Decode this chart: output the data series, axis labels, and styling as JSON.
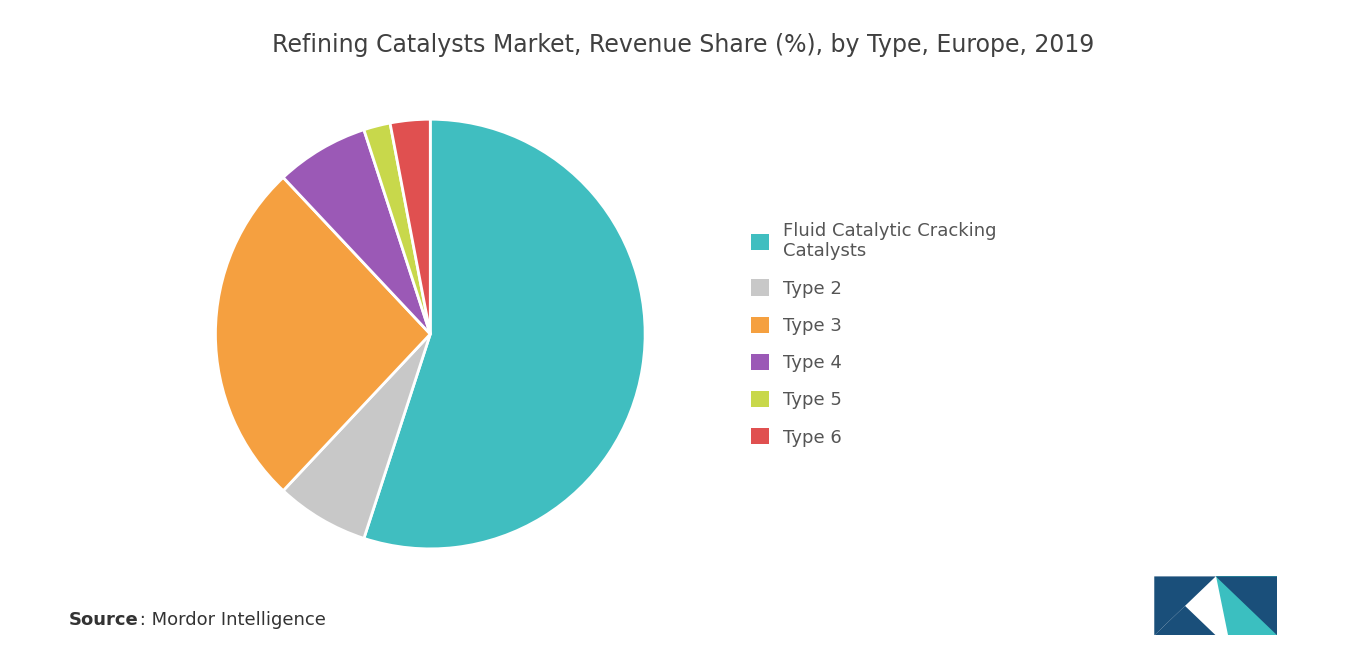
{
  "title": "Refining Catalysts Market, Revenue Share (%), by Type, Europe, 2019",
  "slices": [
    {
      "label": "Fluid Catalytic Cracking\nCatalysts",
      "value": 55,
      "color": "#40BEC0"
    },
    {
      "label": "Type 2",
      "value": 7,
      "color": "#C8C8C8"
    },
    {
      "label": "Type 3",
      "value": 26,
      "color": "#F5A040"
    },
    {
      "label": "Type 4",
      "value": 7,
      "color": "#9B59B6"
    },
    {
      "label": "Type 5",
      "value": 2,
      "color": "#C8D84B"
    },
    {
      "label": "Type 6",
      "value": 3,
      "color": "#E05050"
    }
  ],
  "start_angle": 90,
  "background_color": "#FFFFFF",
  "title_fontsize": 17,
  "legend_fontsize": 13,
  "source_bold": "Source",
  "source_rest": " : Mordor Intelligence"
}
